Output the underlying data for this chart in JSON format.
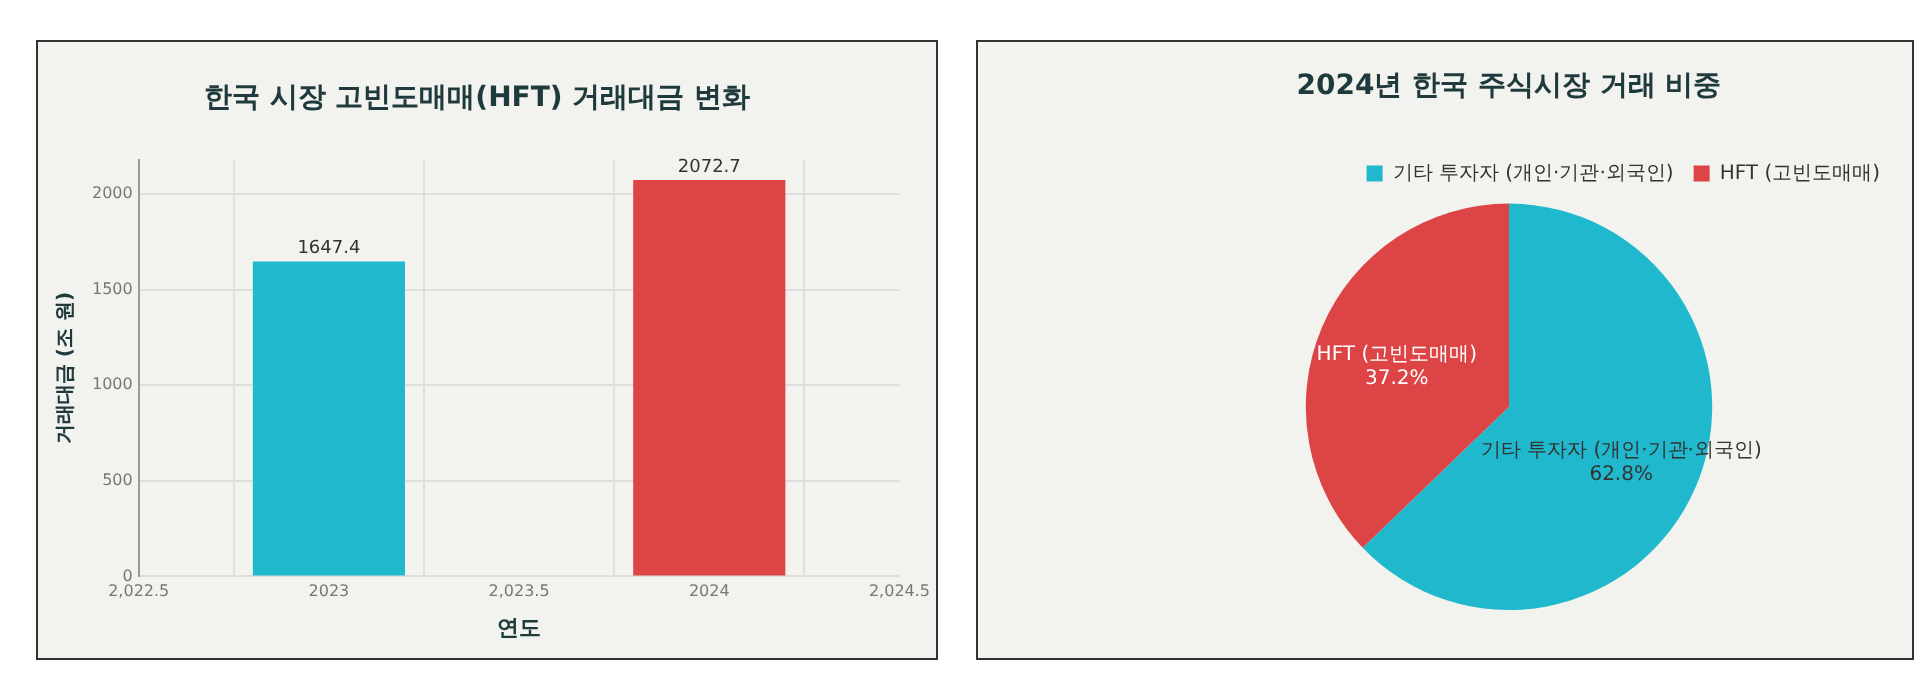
{
  "chart_data": [
    {
      "type": "bar",
      "title": "한국 시장 고빈도매매(HFT) 거래대금 변화",
      "xlabel": "연도",
      "ylabel": "거래대금 (조 원)",
      "x": [
        2023,
        2024
      ],
      "values": [
        1647.4,
        2072.7
      ],
      "colors": [
        "#20b8cd",
        "#dc4446"
      ],
      "xlim": [
        2022.5,
        2024.5
      ],
      "xticks": [
        {
          "value": 2022.5,
          "label": "2,022.5"
        },
        2023,
        {
          "value": 2023.5,
          "label": "2,023.5"
        },
        2024,
        {
          "value": 2024.5,
          "label": "2,024.5"
        }
      ],
      "ylim": [
        0,
        2180
      ],
      "yticks": [
        0,
        500,
        1000,
        1500,
        2000
      ],
      "grid": true,
      "data_labels": true,
      "legend": false
    },
    {
      "type": "pie",
      "title": "2024년 한국 주식시장 거래 비중",
      "categories": [
        "기타 투자자 (개인·기관·외국인)",
        "HFT (고빈도매매)"
      ],
      "values": [
        62.8,
        37.2
      ],
      "value_labels": [
        "62.8%",
        "37.2%"
      ],
      "colors": [
        "#20b8cd",
        "#dc4446"
      ],
      "legend": "top right"
    }
  ]
}
